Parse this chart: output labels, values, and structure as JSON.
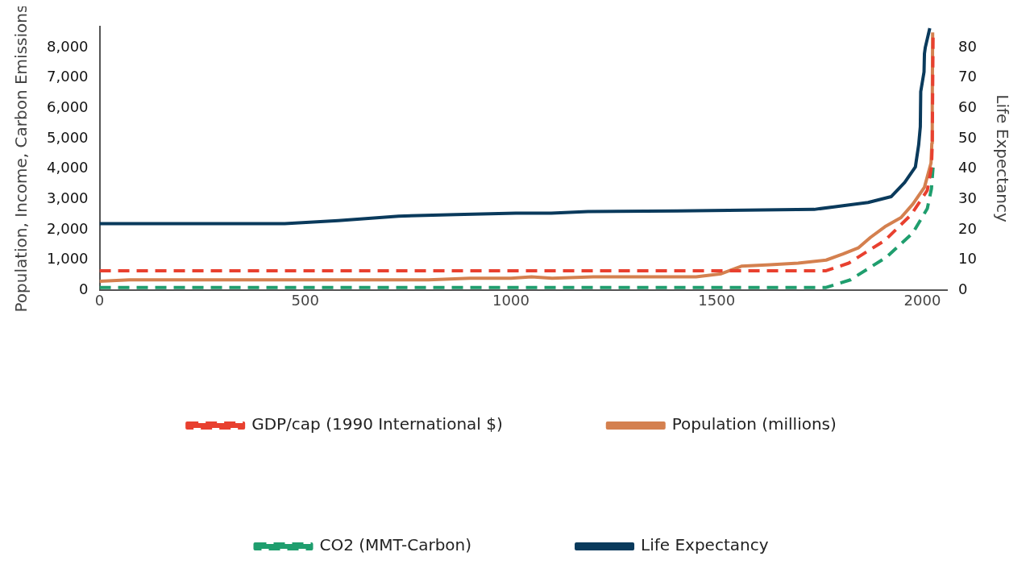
{
  "chart_data": {
    "type": "line",
    "ylabel": "Population, Income, Carbon Emissions",
    "y2label": "Life Expectancy",
    "xlim": [
      0,
      2060
    ],
    "xticks": [
      0,
      500,
      1000,
      1500,
      2000
    ],
    "ylim": [
      0,
      8700
    ],
    "yticks": [
      0,
      {
        "value": 1000,
        "label": "1,000"
      },
      {
        "value": 2000,
        "label": "2,000"
      },
      {
        "value": 3000,
        "label": "3,000"
      },
      {
        "value": 4000,
        "label": "4,000"
      },
      {
        "value": 5000,
        "label": "5,000"
      },
      {
        "value": 6000,
        "label": "6,000"
      },
      {
        "value": 7000,
        "label": "7,000"
      },
      {
        "value": 8000,
        "label": "8,000"
      }
    ],
    "y2lim": [
      0,
      87
    ],
    "y2ticks": [
      0,
      10,
      20,
      30,
      40,
      50,
      60,
      70,
      80
    ],
    "grid": false,
    "legend": "bottom",
    "marker": "none",
    "series": [
      {
        "name": "GDP/cap (1990 International $)",
        "color": "#e8402f",
        "line_style": "dashed",
        "x": [
          0,
          1766,
          1821,
          1850,
          1909,
          1973,
          2012,
          2022,
          2024,
          2026
        ],
        "values": [
          650,
          650,
          900,
          1150,
          1650,
          2500,
          3300,
          4050,
          4800,
          8400
        ]
      },
      {
        "name": "Population (millions)",
        "color": "#d4804f",
        "line_style": "solid",
        "x": [
          0,
          72,
          800,
          900,
          1000,
          1050,
          1100,
          1200,
          1450,
          1511,
          1560,
          1630,
          1698,
          1766,
          1807,
          1844,
          1874,
          1909,
          1948,
          1977,
          2005,
          2021,
          2023,
          2024,
          2025
        ],
        "values": [
          300,
          350,
          350,
          400,
          400,
          450,
          400,
          450,
          450,
          550,
          800,
          850,
          900,
          1000,
          1200,
          1400,
          1750,
          2100,
          2400,
          2850,
          3400,
          4200,
          4850,
          6100,
          8500
        ]
      },
      {
        "name": "CO2 (MMT-Carbon)",
        "color": "#1f9e6e",
        "line_style": "dashed",
        "x": [
          0,
          1766,
          1825,
          1913,
          1977,
          2012,
          2022,
          2026
        ],
        "values": [
          100,
          100,
          350,
          1100,
          1900,
          2700,
          3350,
          4050
        ]
      },
      {
        "name": "Life Expectancy",
        "color": "#0a3a5c",
        "line_style": "solid",
        "axis": "y2",
        "x": [
          0,
          450,
          580,
          727,
          866,
          1012,
          1098,
          1187,
          1404,
          1737,
          1811,
          1868,
          1924,
          1957,
          1983,
          1991,
          1995,
          1996,
          2004,
          2005,
          2007,
          2018
        ],
        "values": [
          22,
          22,
          23,
          24.5,
          25,
          25.5,
          25.5,
          26,
          26.2,
          26.7,
          28,
          29,
          30.9,
          35.6,
          40.7,
          48,
          54,
          65.5,
          72,
          78,
          80,
          86.4
        ]
      }
    ]
  }
}
